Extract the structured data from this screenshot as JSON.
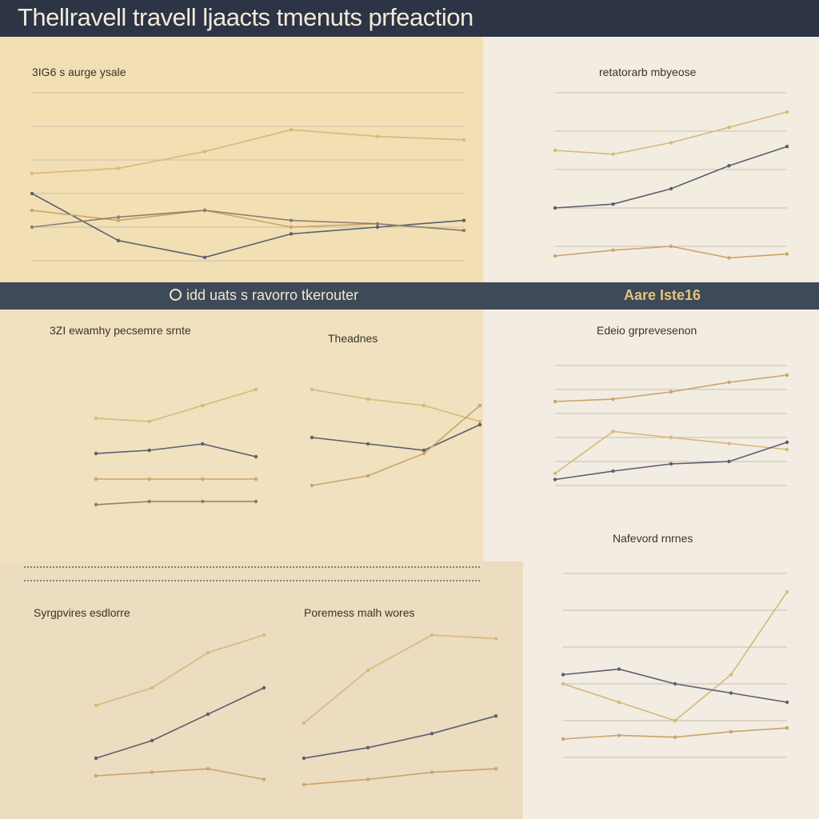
{
  "header": {
    "title": "Thellravell travell ljaacts tmenuts prfeaction"
  },
  "band": {
    "left_label": "idd uats s ravorro tkerouter",
    "right_label": "Aare Iste16"
  },
  "colors": {
    "header_bg": "#2c3446",
    "band_bg": "#3e4a58",
    "accent_gold": "#d7b878",
    "line_dark": "#5a5f6e"
  },
  "chart_data": [
    {
      "id": "c1",
      "type": "line",
      "title": "3IG6 s aurge ysale",
      "series": [
        {
          "values": [
            52,
            55,
            65,
            78,
            74,
            72
          ]
        },
        {
          "values": [
            40,
            12,
            2,
            16,
            20,
            24
          ]
        },
        {
          "values": [
            30,
            24,
            30,
            20,
            22,
            18
          ]
        },
        {
          "values": [
            20,
            26,
            30,
            24,
            22,
            18
          ]
        }
      ],
      "ylim": [
        0,
        100
      ],
      "grid": true
    },
    {
      "id": "c2",
      "type": "line",
      "title": "retatorarb mbyeose",
      "series": [
        {
          "values": [
            70,
            68,
            74,
            82,
            90
          ]
        },
        {
          "values": [
            40,
            42,
            50,
            62,
            72
          ]
        },
        {
          "values": [
            15,
            18,
            20,
            14,
            16
          ]
        }
      ],
      "ylim": [
        0,
        100
      ],
      "grid": true
    },
    {
      "id": "c3",
      "type": "line",
      "title": "3ZI ewamhy pecsemre srnte",
      "series": [
        {
          "values": [
            62,
            60,
            70,
            80
          ]
        },
        {
          "values": [
            40,
            42,
            46,
            38
          ]
        },
        {
          "values": [
            24,
            24,
            24,
            24
          ]
        },
        {
          "values": [
            8,
            10,
            10,
            10
          ]
        }
      ],
      "ylim": [
        0,
        100
      ]
    },
    {
      "id": "c4",
      "type": "line",
      "title": "Theadnes",
      "series": [
        {
          "values": [
            80,
            74,
            70,
            60
          ]
        },
        {
          "values": [
            50,
            46,
            42,
            58
          ]
        },
        {
          "values": [
            20,
            26,
            40,
            70
          ]
        }
      ],
      "ylim": [
        0,
        100
      ]
    },
    {
      "id": "c5",
      "type": "line",
      "title": "Edeio grprevesenon",
      "series": [
        {
          "values": [
            10,
            45,
            40,
            35,
            30
          ]
        },
        {
          "values": [
            5,
            12,
            18,
            20,
            36
          ]
        },
        {
          "values": [
            70,
            72,
            78,
            86,
            92
          ]
        }
      ],
      "ylim": [
        0,
        100
      ],
      "grid": true
    },
    {
      "id": "c6",
      "type": "line",
      "title": "Nafevord rnrnes",
      "series": [
        {
          "values": [
            40,
            30,
            20,
            45,
            90
          ]
        },
        {
          "values": [
            45,
            48,
            40,
            35,
            30
          ]
        },
        {
          "values": [
            10,
            12,
            11,
            14,
            16
          ]
        }
      ],
      "ylim": [
        0,
        100
      ],
      "grid": true
    },
    {
      "id": "c7",
      "type": "line",
      "title": "Syrgpvires esdlorre",
      "series": [
        {
          "values": [
            50,
            60,
            80,
            90
          ]
        },
        {
          "values": [
            20,
            30,
            45,
            60
          ]
        },
        {
          "values": [
            10,
            12,
            14,
            8
          ]
        }
      ],
      "ylim": [
        0,
        100
      ]
    },
    {
      "id": "c8",
      "type": "line",
      "title": "Poremess malh wores",
      "series": [
        {
          "values": [
            40,
            70,
            90,
            88
          ]
        },
        {
          "values": [
            20,
            26,
            34,
            44
          ]
        },
        {
          "values": [
            5,
            8,
            12,
            14
          ]
        }
      ],
      "ylim": [
        0,
        100
      ]
    }
  ]
}
